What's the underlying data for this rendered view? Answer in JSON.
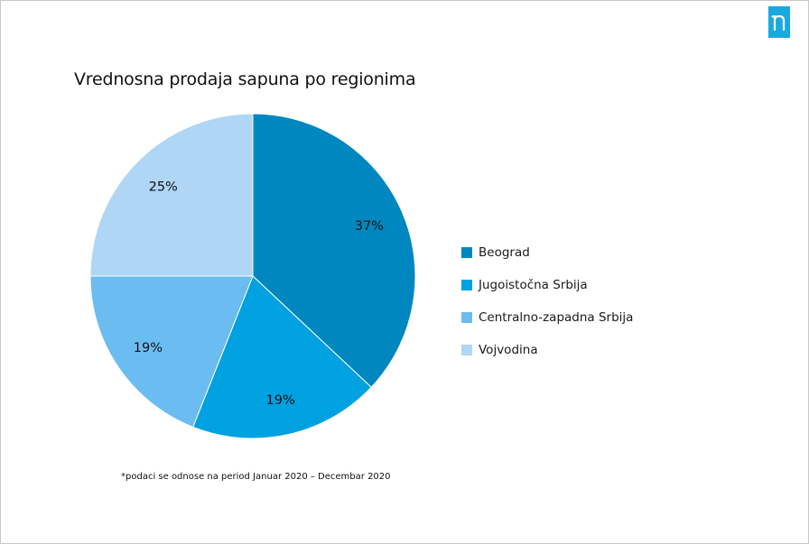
{
  "title": "Vrednosna prodaja sapuna po regionima",
  "footnote": "*podaci se odnose na period Januar 2020 – Decembar 2020",
  "logo": {
    "icon": "nielsen-n-logo",
    "color": "#19a9e1"
  },
  "chart_data": {
    "type": "pie",
    "title": "Vrednosna prodaja sapuna po regionima",
    "categories": [
      "Beograd",
      "Jugoistočna Srbija",
      "Centralno-zapadna Srbija",
      "Vojvodina"
    ],
    "values": [
      37,
      19,
      19,
      25
    ],
    "labels": [
      "37%",
      "19%",
      "19%",
      "25%"
    ],
    "colors": [
      "#0087bf",
      "#00a1e0",
      "#6bbcf0",
      "#b0d6f6"
    ],
    "start_angle_deg": 0,
    "direction": "clockwise",
    "legend_position": "right"
  }
}
